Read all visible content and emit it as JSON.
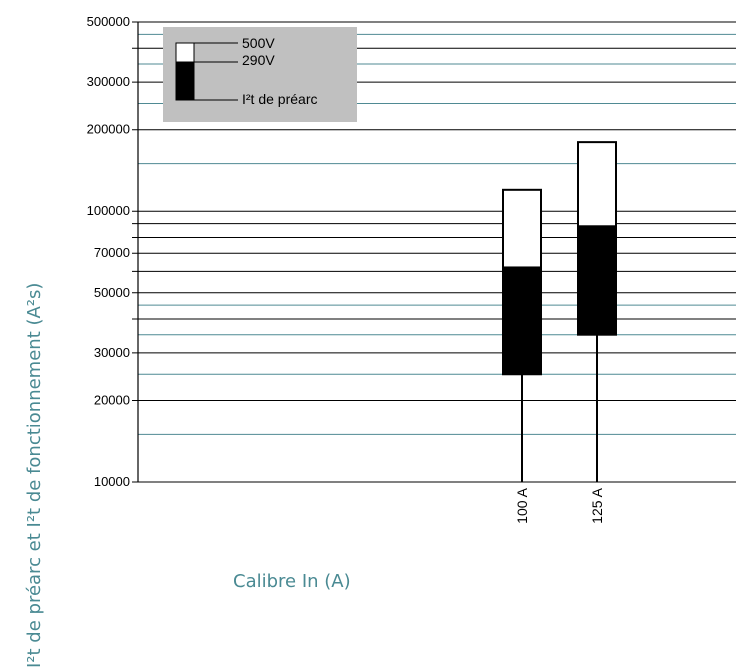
{
  "chart_data": {
    "type": "bar",
    "scale": "log",
    "ylim": [
      10000,
      500000
    ],
    "ylabel": "I²t de préarc et I²t de fonctionnement (A²s)",
    "xlabel": "Calibre In (A)",
    "y_ticks": [
      {
        "value": 10000,
        "label": "10000"
      },
      {
        "value": 20000,
        "label": "20000"
      },
      {
        "value": 30000,
        "label": "30000"
      },
      {
        "value": 50000,
        "label": "50000"
      },
      {
        "value": 70000,
        "label": "70000"
      },
      {
        "value": 100000,
        "label": "100000"
      },
      {
        "value": 200000,
        "label": "200000"
      },
      {
        "value": 300000,
        "label": "300000"
      },
      {
        "value": 500000,
        "label": "500000"
      }
    ],
    "black_gridlines": [
      10000,
      20000,
      30000,
      40000,
      50000,
      60000,
      70000,
      80000,
      90000,
      100000,
      200000,
      300000,
      400000,
      500000
    ],
    "teal_gridlines": [
      15000,
      25000,
      35000,
      45000,
      150000,
      250000,
      350000,
      450000
    ],
    "categories": [
      "100 A",
      "125 A"
    ],
    "series": [
      {
        "name": "I²t de préarc",
        "values": [
          25000,
          35000
        ],
        "color": "#000000"
      },
      {
        "name": "290V",
        "values": [
          62000,
          88000
        ],
        "color": "#000000"
      },
      {
        "name": "500V",
        "values": [
          120000,
          180000
        ],
        "color": "#ffffff"
      }
    ],
    "legend": {
      "position": "top-left",
      "entries": [
        "500V",
        "290V",
        "I²t de préarc"
      ],
      "background": "#c0c0c0"
    },
    "colors": {
      "gridline_black": "#000000",
      "gridline_teal": "#4f8a93",
      "axis_title": "#4a8a93"
    }
  }
}
